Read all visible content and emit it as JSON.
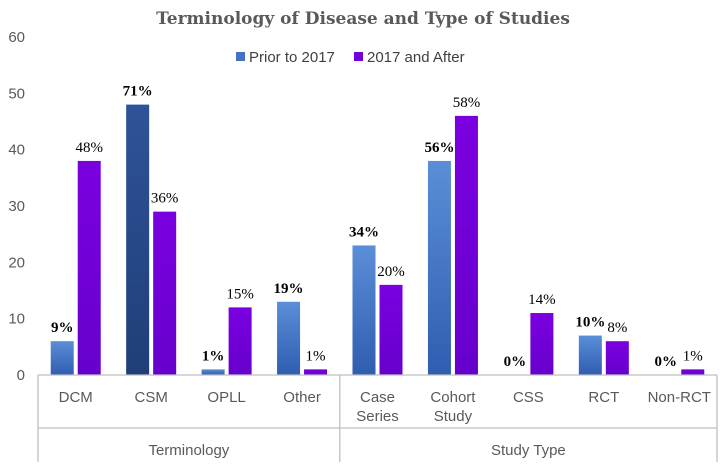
{
  "chart_data": {
    "type": "bar",
    "title": "Terminology of Disease and Type of Studies",
    "ylim": [
      0,
      60
    ],
    "yticks": [
      0,
      10,
      20,
      30,
      40,
      50,
      60
    ],
    "grid": false,
    "legend_position": "top",
    "categories": [
      {
        "label": [
          "DCM"
        ],
        "group": 0
      },
      {
        "label": [
          "CSM"
        ],
        "group": 0
      },
      {
        "label": [
          "OPLL"
        ],
        "group": 0
      },
      {
        "label": [
          "Other"
        ],
        "group": 0
      },
      {
        "label": [
          "Case",
          "Series"
        ],
        "group": 1
      },
      {
        "label": [
          "Cohort",
          "Study"
        ],
        "group": 1
      },
      {
        "label": [
          "CSS"
        ],
        "group": 1
      },
      {
        "label": [
          "RCT"
        ],
        "group": 1
      },
      {
        "label": [
          "Non-RCT"
        ],
        "group": 1
      }
    ],
    "groups": [
      "Terminology",
      "Study Type"
    ],
    "series": [
      {
        "name": "Prior to 2017",
        "color": "#4472C4",
        "values": [
          6,
          48,
          1,
          13,
          23,
          38,
          0,
          7,
          0
        ],
        "labels": [
          "9%",
          "71%",
          "1%",
          "19%",
          "34%",
          "56%",
          "0%",
          "10%",
          "0%"
        ]
      },
      {
        "name": "2017 and After",
        "color": "#7200D8",
        "values": [
          38,
          29,
          12,
          1,
          16,
          46,
          11,
          6,
          1
        ],
        "labels": [
          "48%",
          "36%",
          "15%",
          "1%",
          "20%",
          "58%",
          "14%",
          "8%",
          "1%"
        ]
      }
    ]
  }
}
